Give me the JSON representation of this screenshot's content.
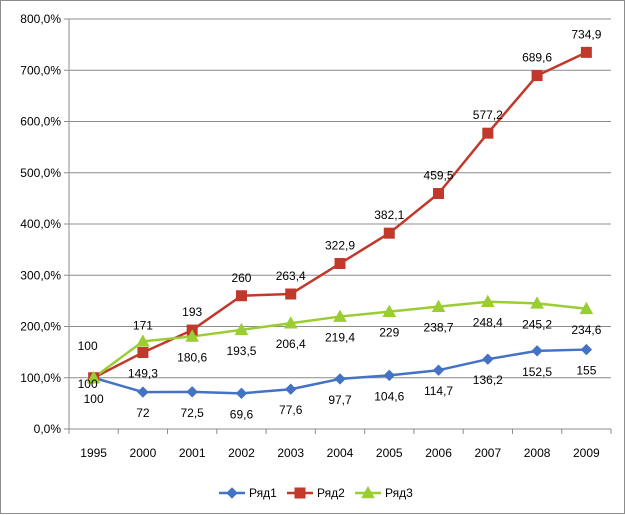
{
  "chart_data": {
    "type": "line",
    "categories": [
      "1995",
      "2000",
      "2001",
      "2002",
      "2003",
      "2004",
      "2005",
      "2006",
      "2007",
      "2008",
      "2009"
    ],
    "ylim": [
      0,
      800
    ],
    "y_step": 100,
    "y_tick_labels": [
      "0,0%",
      "100,0%",
      "200,0%",
      "300,0%",
      "400,0%",
      "500,0%",
      "600,0%",
      "700,0%",
      "800,0%"
    ],
    "grid": true,
    "legend_position": "bottom",
    "series": [
      {
        "name": "Ряд1",
        "color": "#4472c4",
        "marker": "diamond",
        "values": [
          100,
          72,
          72.5,
          69.6,
          77.6,
          97.7,
          104.6,
          114.7,
          136.2,
          152.5,
          155
        ],
        "labels": [
          "100",
          "72",
          "72,5",
          "69,6",
          "77,6",
          "97,7",
          "104,6",
          "114,7",
          "136,2",
          "152,5",
          "155"
        ]
      },
      {
        "name": "Ряд2",
        "color": "#c0392b",
        "marker": "square",
        "values": [
          100,
          149.3,
          193,
          260,
          263.4,
          322.9,
          382.1,
          459.5,
          577.2,
          689.6,
          734.9
        ],
        "labels": [
          "100",
          "149,3",
          "193",
          "260",
          "263,4",
          "322,9",
          "382,1",
          "459,5",
          "577,2",
          "689,6",
          "734,9"
        ]
      },
      {
        "name": "Ряд3",
        "color": "#9acd32",
        "marker": "triangle",
        "values": [
          100,
          171,
          180.6,
          193.5,
          206.4,
          219.4,
          229,
          238.7,
          248.4,
          245.2,
          234.6
        ],
        "labels": [
          "100",
          "171",
          "180,6",
          "193,5",
          "206,4",
          "219,4",
          "229",
          "238,7",
          "248,4",
          "245,2",
          "234,6"
        ]
      }
    ]
  }
}
